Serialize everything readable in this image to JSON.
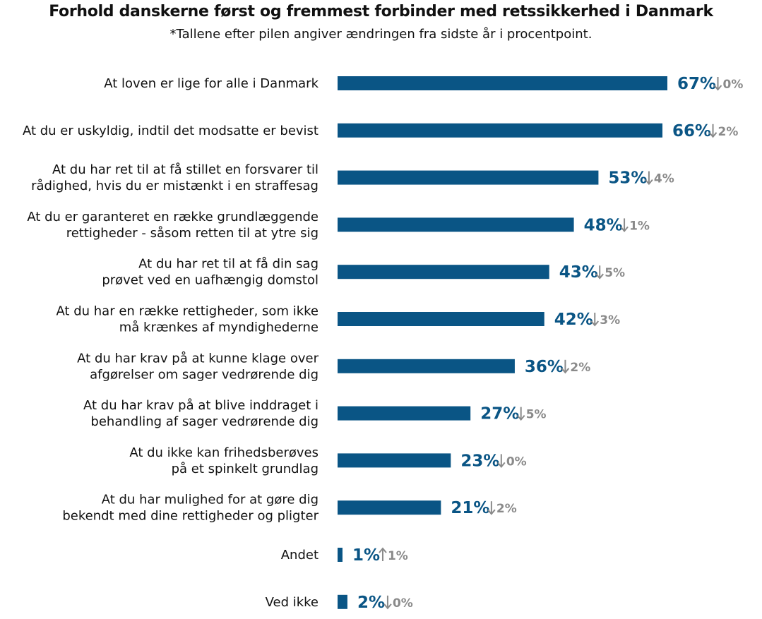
{
  "chart_data": {
    "type": "bar",
    "orientation": "horizontal",
    "title": "Forhold danskerne først og fremmest forbinder med retssikkerhed i Danmark",
    "subtitle": "*Tallene efter pilen angiver ændringen fra sidste år i procentpoint.",
    "bar_color": "#0a5585",
    "change_color": "#8a8a8a",
    "xlim": [
      0,
      70
    ],
    "grid": false,
    "legend": "none",
    "categories": [
      [
        "At loven er lige for alle i Danmark"
      ],
      [
        "At du er uskyldig, indtil det modsatte er bevist"
      ],
      [
        "At du har ret til at få stillet en forsvarer til",
        "rådighed, hvis du er mistænkt i en straffesag"
      ],
      [
        "At du er garanteret en række grundlæggende",
        "rettigheder - såsom retten til at ytre sig"
      ],
      [
        "At du har ret til at få din sag",
        "prøvet ved en uafhængig domstol"
      ],
      [
        "At du har en række rettigheder, som ikke",
        "må krænkes af myndighederne"
      ],
      [
        "At du har krav på at kunne klage over",
        "afgørelser om sager vedrørende dig"
      ],
      [
        "At du har krav på at blive inddraget i",
        "behandling af sager vedrørende dig"
      ],
      [
        "At du ikke kan frihedsberøves",
        "på et spinkelt grundlag"
      ],
      [
        "At du har mulighed for at gøre dig",
        "bekendt med dine rettigheder og pligter"
      ],
      [
        "Andet"
      ],
      [
        "Ved ikke"
      ]
    ],
    "values": [
      67,
      66,
      53,
      48,
      43,
      42,
      36,
      27,
      23,
      21,
      1,
      2
    ],
    "value_labels": [
      "67%",
      "66%",
      "53%",
      "48%",
      "43%",
      "42%",
      "36%",
      "27%",
      "23%",
      "21%",
      "1%",
      "2%"
    ],
    "change_direction": [
      "down",
      "down",
      "down",
      "down",
      "down",
      "down",
      "down",
      "down",
      "down",
      "down",
      "up",
      "down"
    ],
    "change_labels": [
      "0%",
      "2%",
      "4%",
      "1%",
      "5%",
      "3%",
      "2%",
      "5%",
      "0%",
      "2%",
      "1%",
      "0%"
    ]
  }
}
